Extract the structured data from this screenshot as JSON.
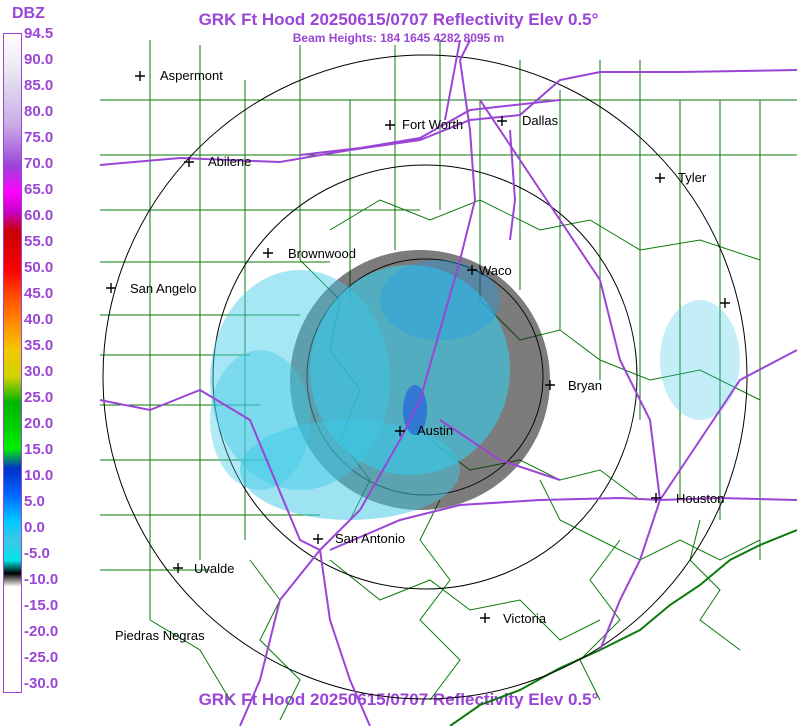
{
  "title": "GRK Ft Hood 20250615/0707 Reflectivity Elev 0.5°",
  "subtitle": "Beam Heights: 184 1645 4282 8095 m",
  "legend": {
    "label": "DBZ",
    "ticks": [
      "94.5",
      "90.0",
      "85.0",
      "80.0",
      "75.0",
      "70.0",
      "65.0",
      "60.0",
      "55.0",
      "50.0",
      "45.0",
      "40.0",
      "35.0",
      "30.0",
      "25.0",
      "20.0",
      "15.0",
      "10.0",
      "5.0",
      "0.0",
      "-5.0",
      "-10.0",
      "-15.0",
      "-20.0",
      "-25.0",
      "-30.0"
    ],
    "colors": {
      "clear": "#ffffff",
      "light": "#3cc8e6",
      "moderate": "#19a0f0",
      "heavy": "#00a000",
      "accent": "#9b45d6"
    }
  },
  "cities": [
    {
      "name": "Aspermont"
    },
    {
      "name": "Fort Worth"
    },
    {
      "name": "Dallas"
    },
    {
      "name": "Abilene"
    },
    {
      "name": "Tyler"
    },
    {
      "name": "Brownwood"
    },
    {
      "name": "Waco"
    },
    {
      "name": "San Angelo"
    },
    {
      "name": "Bryan"
    },
    {
      "name": "Austin"
    },
    {
      "name": "Houston"
    },
    {
      "name": "San Antonio"
    },
    {
      "name": "Uvalde"
    },
    {
      "name": "Victoria"
    },
    {
      "name": "Piedras Negras"
    },
    {
      "name": ""
    }
  ]
}
